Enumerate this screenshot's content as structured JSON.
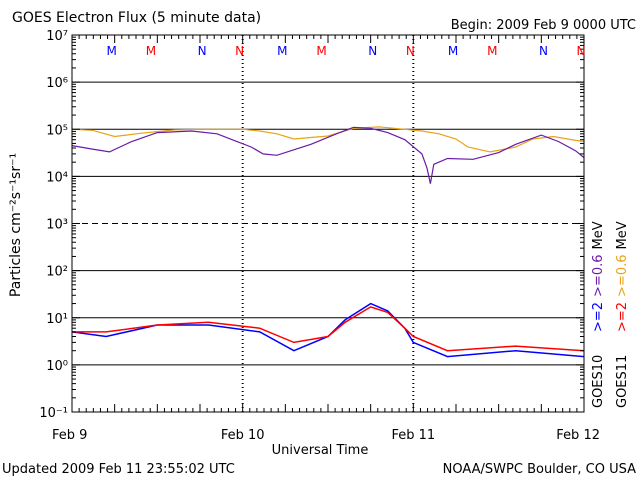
{
  "colors": {
    "e2_goes10": "#0000ff",
    "e2_goes11": "#ff0000",
    "e06_goes10": "#6a1aa8",
    "e06_goes11": "#e8a317",
    "axis": "#000000"
  },
  "chart_data": {
    "type": "line",
    "title": "GOES Electron Flux (5 minute data)",
    "begin_label": "Begin: 2009 Feb 9 0000 UTC",
    "xlabel": "Universal Time",
    "ylabel": "Particles cm⁻²s⁻¹sr⁻¹",
    "yscale": "log",
    "ylim": [
      0.1,
      10000000
    ],
    "y_tick_labels": [
      "10⁻¹",
      "10⁰",
      "10¹",
      "10²",
      "10³",
      "10⁴",
      "10⁵",
      "10⁶",
      "10⁷"
    ],
    "x_unit": "days since 2009 Feb 9 0000 UTC",
    "xlim": [
      0,
      3
    ],
    "x_ticks": [
      {
        "x": 0,
        "label": "Feb 9"
      },
      {
        "x": 1,
        "label": "Feb 10"
      },
      {
        "x": 2,
        "label": "Feb 11"
      },
      {
        "x": 3,
        "label": "Feb 12"
      }
    ],
    "mn_markers": [
      {
        "x": 0.25,
        "label": "M",
        "color": "#0000ff"
      },
      {
        "x": 0.48,
        "label": "M",
        "color": "#ff0000"
      },
      {
        "x": 0.78,
        "label": "N",
        "color": "#0000ff"
      },
      {
        "x": 1.0,
        "label": "N",
        "color": "#ff0000"
      },
      {
        "x": 1.25,
        "label": "M",
        "color": "#0000ff"
      },
      {
        "x": 1.48,
        "label": "M",
        "color": "#ff0000"
      },
      {
        "x": 1.78,
        "label": "N",
        "color": "#0000ff"
      },
      {
        "x": 2.0,
        "label": "N",
        "color": "#ff0000"
      },
      {
        "x": 2.25,
        "label": "M",
        "color": "#0000ff"
      },
      {
        "x": 2.48,
        "label": "M",
        "color": "#ff0000"
      },
      {
        "x": 2.78,
        "label": "N",
        "color": "#0000ff"
      },
      {
        "x": 3.0,
        "label": "N",
        "color": "#ff0000"
      }
    ],
    "series": [
      {
        "name": "GOES11 >=0.6 MeV",
        "color": "#e8a317",
        "x": [
          0.0,
          0.12,
          0.25,
          0.4,
          0.6,
          0.75,
          0.9,
          1.0,
          1.1,
          1.2,
          1.3,
          1.5,
          1.65,
          1.8,
          1.95,
          2.05,
          2.15,
          2.25,
          2.32,
          2.45,
          2.6,
          2.7,
          2.82,
          2.95,
          3.0
        ],
        "y": [
          100000,
          95000,
          70000,
          82000,
          97000,
          100000,
          100000,
          100000,
          92000,
          80000,
          62000,
          72000,
          105000,
          112000,
          100000,
          92000,
          80000,
          62000,
          42000,
          33000,
          42000,
          62000,
          70000,
          58000,
          55000
        ]
      },
      {
        "name": "GOES10 >=0.6 MeV",
        "color": "#6a1aa8",
        "x": [
          0.0,
          0.12,
          0.22,
          0.35,
          0.5,
          0.7,
          0.85,
          0.95,
          1.05,
          1.12,
          1.2,
          1.4,
          1.55,
          1.65,
          1.75,
          1.85,
          1.95,
          2.05,
          2.08,
          2.1,
          2.12,
          2.2,
          2.35,
          2.5,
          2.6,
          2.75,
          2.85,
          2.95,
          3.0
        ],
        "y": [
          45000,
          38000,
          33000,
          55000,
          85000,
          92000,
          80000,
          58000,
          42000,
          30000,
          28000,
          48000,
          80000,
          110000,
          105000,
          85000,
          60000,
          30000,
          15000,
          7000,
          18000,
          24000,
          23000,
          32000,
          48000,
          75000,
          55000,
          35000,
          25000
        ]
      },
      {
        "name": "GOES10 >=2 MeV",
        "color": "#0000ff",
        "x": [
          0.0,
          0.2,
          0.5,
          0.8,
          1.1,
          1.3,
          1.5,
          1.6,
          1.75,
          1.85,
          1.95,
          2.0,
          2.2,
          2.6,
          3.0
        ],
        "y": [
          5,
          4,
          7,
          7,
          5,
          2,
          4,
          9,
          20,
          14,
          6,
          3,
          1.5,
          2,
          1.5
        ]
      },
      {
        "name": "GOES11 >=2 MeV",
        "color": "#ff0000",
        "x": [
          0.0,
          0.2,
          0.5,
          0.8,
          1.1,
          1.3,
          1.5,
          1.6,
          1.75,
          1.85,
          1.95,
          2.0,
          2.2,
          2.6,
          3.0
        ],
        "y": [
          5,
          5,
          7,
          8,
          6,
          3,
          4,
          8,
          17,
          13,
          6,
          4,
          2,
          2.5,
          2
        ]
      }
    ],
    "legend": {
      "placement": "right",
      "goes10": {
        "label": "GOES10",
        "items": [
          {
            "text": ">=2",
            "color": "#0000ff"
          },
          {
            "text": ">=0.6",
            "color": "#6a1aa8"
          }
        ],
        "unit": "MeV"
      },
      "goes11": {
        "label": "GOES11",
        "items": [
          {
            "text": ">=2",
            "color": "#ff0000"
          },
          {
            "text": ">=0.6",
            "color": "#e8a317"
          }
        ],
        "unit": "MeV"
      }
    },
    "updated_label": "Updated 2009 Feb 11 23:55:02 UTC",
    "credit_label": "NOAA/SWPC Boulder, CO USA"
  }
}
